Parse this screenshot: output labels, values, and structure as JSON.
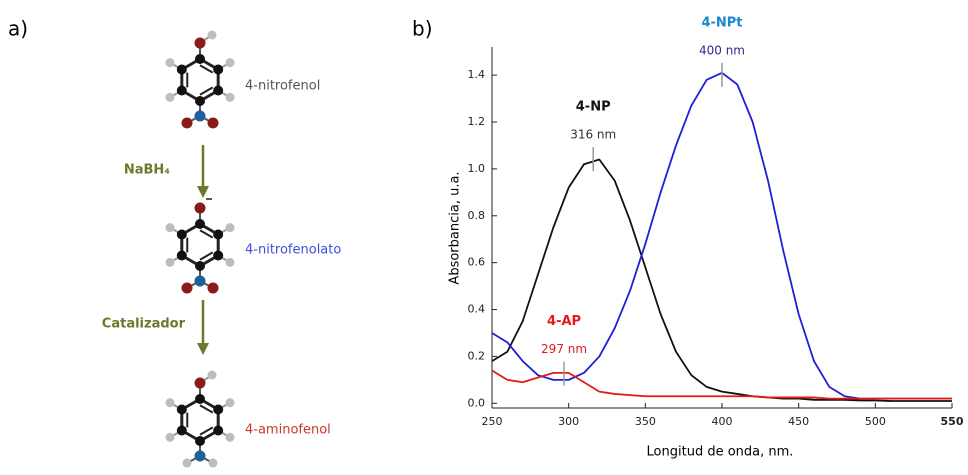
{
  "panel_a": {
    "label": "a)",
    "molecules": [
      {
        "label": "4-nitrofenol"
      },
      {
        "label": "4-nitrofenolato"
      },
      {
        "label": "4-aminofenol"
      }
    ],
    "steps": [
      {
        "reagent": "NaBH₄"
      },
      {
        "reagent": "Catalizador"
      }
    ]
  },
  "chart_data": {
    "type": "line",
    "panel_label": "b)",
    "x_label": "Longitud de onda, nm.",
    "y_label": "Absorbancia, u.a.",
    "x": [
      250,
      260,
      270,
      280,
      290,
      300,
      310,
      320,
      330,
      340,
      350,
      360,
      370,
      380,
      390,
      400,
      410,
      420,
      430,
      440,
      450,
      460,
      470,
      480,
      490,
      500,
      510,
      520,
      530,
      540,
      550
    ],
    "series": [
      {
        "name": "4-NP",
        "color": "#111111",
        "values": [
          0.18,
          0.22,
          0.35,
          0.55,
          0.75,
          0.92,
          1.02,
          1.04,
          0.95,
          0.78,
          0.58,
          0.38,
          0.22,
          0.12,
          0.07,
          0.05,
          0.04,
          0.03,
          0.025,
          0.02,
          0.02,
          0.015,
          0.015,
          0.015,
          0.012,
          0.012,
          0.01,
          0.01,
          0.01,
          0.01,
          0.01
        ]
      },
      {
        "name": "4-NPt",
        "color": "#1f1fd6",
        "values": [
          0.3,
          0.26,
          0.18,
          0.12,
          0.1,
          0.1,
          0.13,
          0.2,
          0.32,
          0.48,
          0.68,
          0.9,
          1.1,
          1.27,
          1.38,
          1.41,
          1.36,
          1.2,
          0.95,
          0.65,
          0.38,
          0.18,
          0.07,
          0.03,
          0.02,
          0.02,
          0.02,
          0.02,
          0.02,
          0.02,
          0.02
        ]
      },
      {
        "name": "4-AP",
        "color": "#e41a1a",
        "values": [
          0.14,
          0.1,
          0.09,
          0.11,
          0.13,
          0.13,
          0.09,
          0.05,
          0.04,
          0.035,
          0.03,
          0.03,
          0.03,
          0.03,
          0.03,
          0.03,
          0.03,
          0.03,
          0.025,
          0.025,
          0.025,
          0.025,
          0.02,
          0.02,
          0.02,
          0.02,
          0.02,
          0.02,
          0.02,
          0.02,
          0.02
        ]
      }
    ],
    "annotations": [
      {
        "series": 0,
        "label": "316 nm",
        "x": 316,
        "y": 1.05,
        "title_color": "#111111",
        "label_color": "#333333"
      },
      {
        "series": 1,
        "label": "400 nm",
        "x": 400,
        "y": 1.41,
        "title_color": "#1a87d1",
        "label_color": "#2b2b8f"
      },
      {
        "series": 2,
        "label": "297 nm",
        "x": 297,
        "y": 0.135,
        "title_color": "#e41a1a",
        "label_color": "#e41a1a"
      }
    ],
    "xlim": [
      250,
      550
    ],
    "xticks": [
      250,
      300,
      350,
      400,
      450,
      500,
      550
    ],
    "ylim": [
      -0.02,
      1.52
    ],
    "yticks": [
      {
        "value": 0,
        "label": "0.0"
      },
      0.2,
      0.4,
      0.6,
      0.8,
      {
        "value": 1,
        "label": "1.0"
      },
      1.2,
      1.4
    ]
  }
}
